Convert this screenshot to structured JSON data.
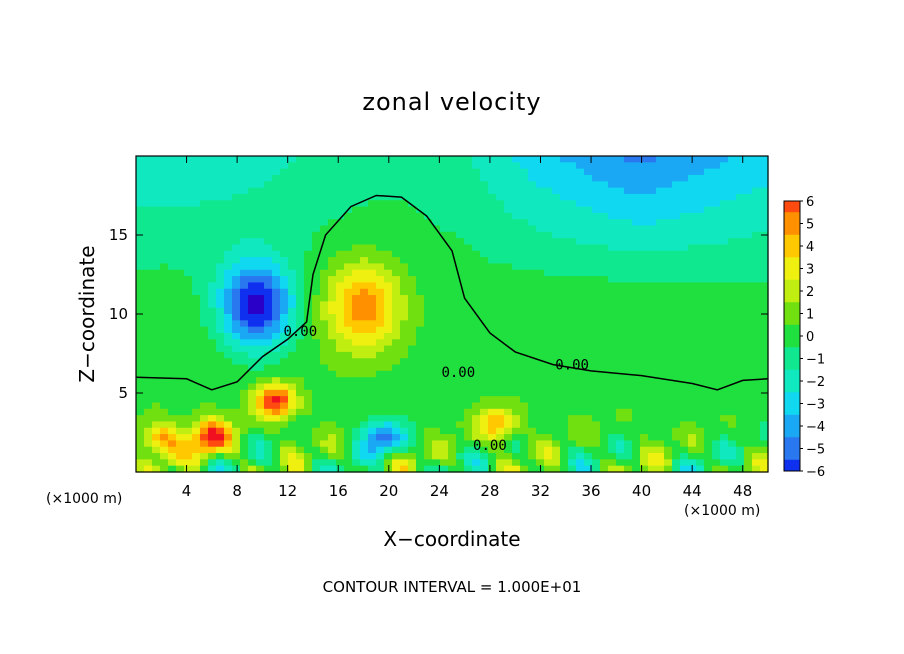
{
  "chart_data": {
    "type": "heatmap",
    "title": "zonal velocity",
    "xlabel": "X−coordinate",
    "ylabel": "Z−coordinate",
    "x_unit": "(×1000 m)",
    "xlim": [
      0,
      50
    ],
    "ylim": [
      0,
      20
    ],
    "x_ticks": [
      4,
      8,
      12,
      16,
      20,
      24,
      28,
      32,
      36,
      40,
      44,
      48
    ],
    "x_tick_labels": [
      "4",
      "8",
      "12",
      "16",
      "20",
      "24",
      "28",
      "32",
      "36",
      "40",
      "44",
      "48"
    ],
    "y_ticks": [
      5,
      10,
      15
    ],
    "y_tick_labels": [
      "5",
      "10",
      "15"
    ],
    "colorbar": {
      "min": -6,
      "max": 6,
      "tick_values": [
        6,
        5,
        4,
        3,
        2,
        1,
        0,
        -1,
        -2,
        -3,
        -4,
        -5,
        -6
      ],
      "tick_labels": [
        "6",
        "5",
        "4",
        "3",
        "2",
        "1",
        "0",
        "−1",
        "−2",
        "−3",
        "−4",
        "−5",
        "−6"
      ]
    },
    "contour_labels": [
      {
        "text": "0.00",
        "x": 13,
        "z": 8.6
      },
      {
        "text": "0.00",
        "x": 25.5,
        "z": 6.0
      },
      {
        "text": "0.00",
        "x": 34.5,
        "z": 6.5
      },
      {
        "text": "0.00",
        "x": 28,
        "z": 1.4
      }
    ],
    "features": [
      {
        "kind": "min",
        "x": 9.5,
        "z": 10.5,
        "value": -7
      },
      {
        "kind": "max",
        "x": 18,
        "z": 10.5,
        "value": 5
      },
      {
        "kind": "max",
        "x": 11,
        "z": 4.5,
        "value": 6.5
      },
      {
        "kind": "max",
        "x": 6,
        "z": 2.2,
        "value": 6.5
      },
      {
        "kind": "max",
        "x": 2,
        "z": 2,
        "value": 5
      },
      {
        "kind": "min",
        "x": 19.5,
        "z": 2.2,
        "value": -5
      },
      {
        "kind": "max",
        "x": 28.5,
        "z": 3,
        "value": 4
      }
    ],
    "footer": "CONTOUR INTERVAL = 1.000E+01"
  }
}
